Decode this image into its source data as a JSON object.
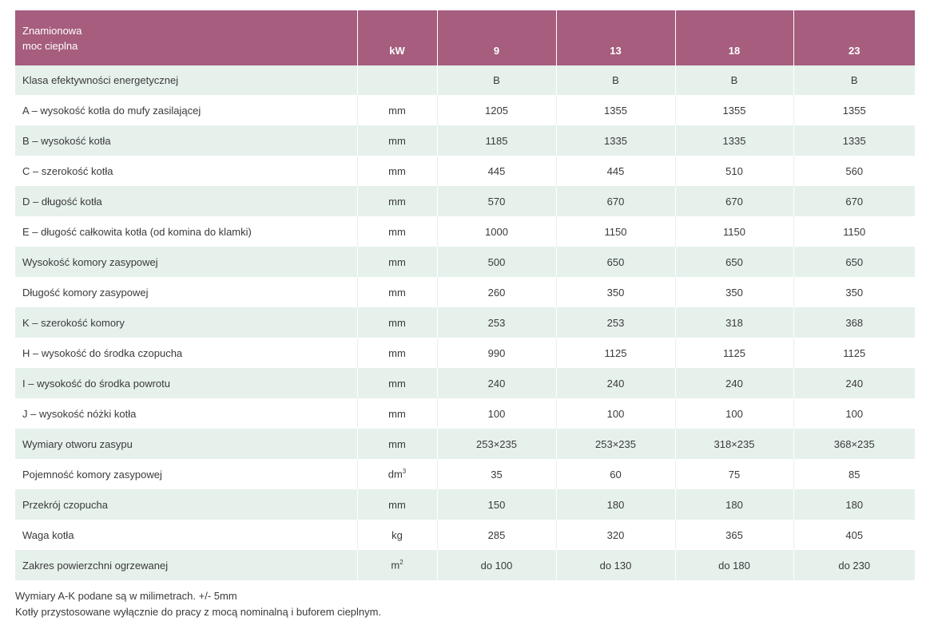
{
  "table": {
    "header": {
      "label_line1": "Znamionowa",
      "label_line2": "moc cieplna",
      "unit": "kW",
      "models": [
        "9",
        "13",
        "18",
        "23"
      ]
    },
    "rows": [
      {
        "label": "Klasa efektywności energetycznej",
        "unit": "",
        "values": [
          "B",
          "B",
          "B",
          "B"
        ]
      },
      {
        "label": "A – wysokość kotła do mufy zasilającej",
        "unit": "mm",
        "values": [
          "1205",
          "1355",
          "1355",
          "1355"
        ]
      },
      {
        "label": "B – wysokość kotła",
        "unit": "mm",
        "values": [
          "1185",
          "1335",
          "1335",
          "1335"
        ]
      },
      {
        "label": "C – szerokość kotła",
        "unit": "mm",
        "values": [
          "445",
          "445",
          "510",
          "560"
        ]
      },
      {
        "label": "D – długość kotła",
        "unit": "mm",
        "values": [
          "570",
          "670",
          "670",
          "670"
        ]
      },
      {
        "label": "E – długość całkowita kotła (od komina do klamki)",
        "unit": "mm",
        "values": [
          "1000",
          "1150",
          "1150",
          "1150"
        ]
      },
      {
        "label": "Wysokość komory zasypowej",
        "unit": "mm",
        "values": [
          "500",
          "650",
          "650",
          "650"
        ]
      },
      {
        "label": "Długość komory zasypowej",
        "unit": "mm",
        "values": [
          "260",
          "350",
          "350",
          "350"
        ]
      },
      {
        "label": "K – szerokość komory",
        "unit": "mm",
        "values": [
          "253",
          "253",
          "318",
          "368"
        ]
      },
      {
        "label": "H – wysokość do środka czopucha",
        "unit": "mm",
        "values": [
          "990",
          "1125",
          "1125",
          "1125"
        ]
      },
      {
        "label": "I – wysokość do środka powrotu",
        "unit": "mm",
        "values": [
          "240",
          "240",
          "240",
          "240"
        ]
      },
      {
        "label": "J – wysokość nóżki kotła",
        "unit": "mm",
        "values": [
          "100",
          "100",
          "100",
          "100"
        ]
      },
      {
        "label": "Wymiary otworu zasypu",
        "unit": "mm",
        "values": [
          "253×235",
          "253×235",
          "318×235",
          "368×235"
        ]
      },
      {
        "label": "Pojemność komory zasypowej",
        "unit": "dm",
        "unit_sup": "3",
        "values": [
          "35",
          "60",
          "75",
          "85"
        ]
      },
      {
        "label": "Przekrój czopucha",
        "unit": "mm",
        "values": [
          "150",
          "180",
          "180",
          "180"
        ]
      },
      {
        "label": "Waga kotła",
        "unit": "kg",
        "values": [
          "285",
          "320",
          "365",
          "405"
        ]
      },
      {
        "label": "Zakres powierzchni ogrzewanej",
        "unit": "m",
        "unit_sup": "2",
        "values": [
          "do 100",
          "do 130",
          "do 180",
          "do 230"
        ]
      }
    ]
  },
  "notes": [
    "Wymiary A-K podane są w milimetrach. +/- 5mm",
    "Kotły przystosowane wyłącznie do pracy z mocą nominalną i buforem cieplnym."
  ],
  "colors": {
    "header_bg": "#a65d7e",
    "stripe_bg": "#e6f1ec"
  }
}
